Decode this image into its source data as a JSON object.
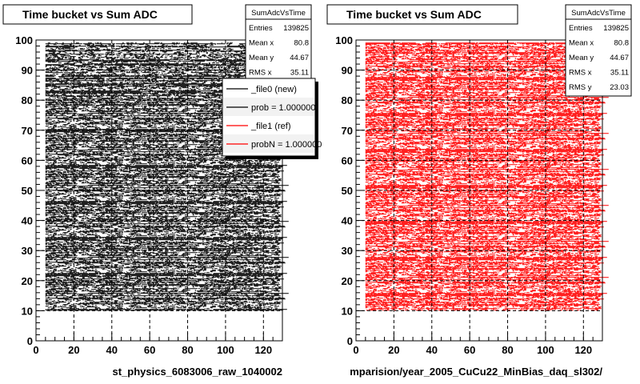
{
  "chart_data": [
    {
      "type": "scatter",
      "title": "Time bucket vs Sum ADC",
      "xlabel": "st_physics_6083006_raw_1040002",
      "ylabel": "",
      "xlim": [
        0,
        130
      ],
      "ylim": [
        0,
        100
      ],
      "x_ticks": [
        0,
        20,
        40,
        60,
        80,
        100,
        120
      ],
      "y_ticks": [
        0,
        10,
        20,
        30,
        40,
        50,
        60,
        70,
        80,
        90,
        100
      ],
      "grid": true,
      "color": "#000000",
      "x_range": [
        5,
        128
      ],
      "y_range": [
        10,
        99
      ],
      "stats": {
        "name": "SumAdcVsTime",
        "rows": [
          {
            "label": "Entries",
            "value": "139825"
          },
          {
            "label": "Mean x",
            "value": "80.8"
          },
          {
            "label": "Mean y",
            "value": "44.67"
          },
          {
            "label": "RMS x",
            "value": "35.11"
          }
        ]
      },
      "legend": {
        "placement": "top-right",
        "entries": [
          {
            "label": "_file0 (new)",
            "color": "#000000"
          },
          {
            "label": "prob = 1.000000",
            "color": "#000000"
          },
          {
            "label": "_file1 (ref)",
            "color": "#ff0000"
          },
          {
            "label": "probN = 1.000000",
            "color": "#ff0000"
          }
        ]
      }
    },
    {
      "type": "scatter",
      "title": "Time bucket vs Sum ADC",
      "xlabel": "mparision/year_2005_CuCu22_MinBias_daq_sl302/",
      "ylabel": "",
      "xlim": [
        0,
        130
      ],
      "ylim": [
        0,
        100
      ],
      "x_ticks": [
        0,
        20,
        40,
        60,
        80,
        100,
        120
      ],
      "y_ticks": [
        0,
        10,
        20,
        30,
        40,
        50,
        60,
        70,
        80,
        90,
        100
      ],
      "grid": true,
      "color": "#ff0000",
      "x_range": [
        5,
        128
      ],
      "y_range": [
        10,
        99
      ],
      "stats": {
        "name": "SumAdcVsTime",
        "rows": [
          {
            "label": "Entries",
            "value": "139825"
          },
          {
            "label": "Mean x",
            "value": "80.8"
          },
          {
            "label": "Mean y",
            "value": "44.67"
          },
          {
            "label": "RMS x",
            "value": "35.11"
          },
          {
            "label": "RMS y",
            "value": "23.03"
          }
        ]
      }
    }
  ]
}
